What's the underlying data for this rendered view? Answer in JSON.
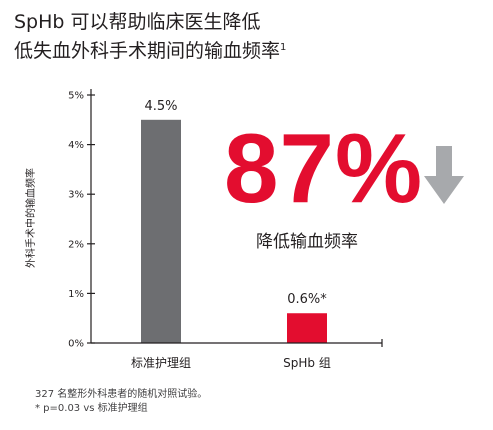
{
  "title": {
    "line1": "SpHb 可以帮助临床医生降低",
    "line2": "低失血外科手术期间的输血频率",
    "superscript": "1"
  },
  "chart_data": {
    "type": "bar",
    "ylabel": "外科手术中的输血频率",
    "ylim": [
      0,
      5
    ],
    "yticks": [
      "0%",
      "1%",
      "2%",
      "3%",
      "4%",
      "5%"
    ],
    "categories": [
      "标准护理组",
      "SpHb 组"
    ],
    "values": [
      4.5,
      0.6
    ],
    "data_labels": [
      "4.5%",
      "0.6%*"
    ],
    "colors": [
      "#6d6e71",
      "#e30d2f"
    ]
  },
  "highlight": {
    "value": "87%",
    "caption": "降低输血频率",
    "arrow_icon": "down-arrow-icon",
    "color": "#e30d2f",
    "arrow_color": "#a7a9ac"
  },
  "footnotes": {
    "line1": "327 名整形外科患者的随机对照试验。",
    "line2": "* p=0.03 vs 标准护理组"
  }
}
